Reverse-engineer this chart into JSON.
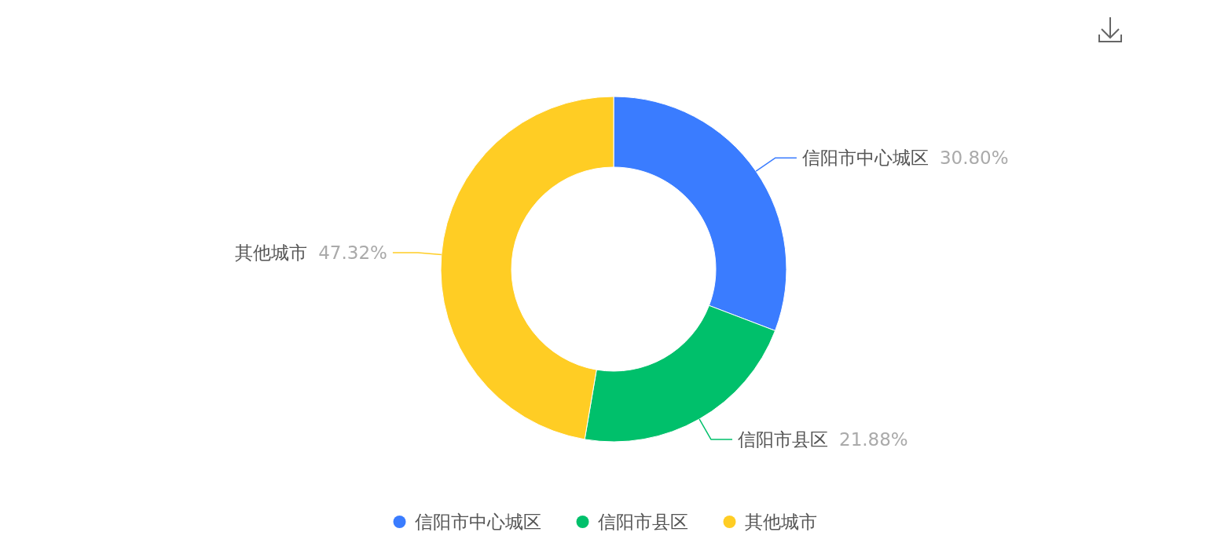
{
  "chart_data": {
    "type": "donut",
    "categories": [
      "信阳市中心城区",
      "信阳市县区",
      "其他城市"
    ],
    "values": [
      30.8,
      21.88,
      47.32
    ],
    "value_labels": [
      "30.80%",
      "21.88%",
      "47.32%"
    ],
    "colors": [
      "#3a7cff",
      "#00c06b",
      "#ffcd24"
    ],
    "legend": "bottom"
  }
}
